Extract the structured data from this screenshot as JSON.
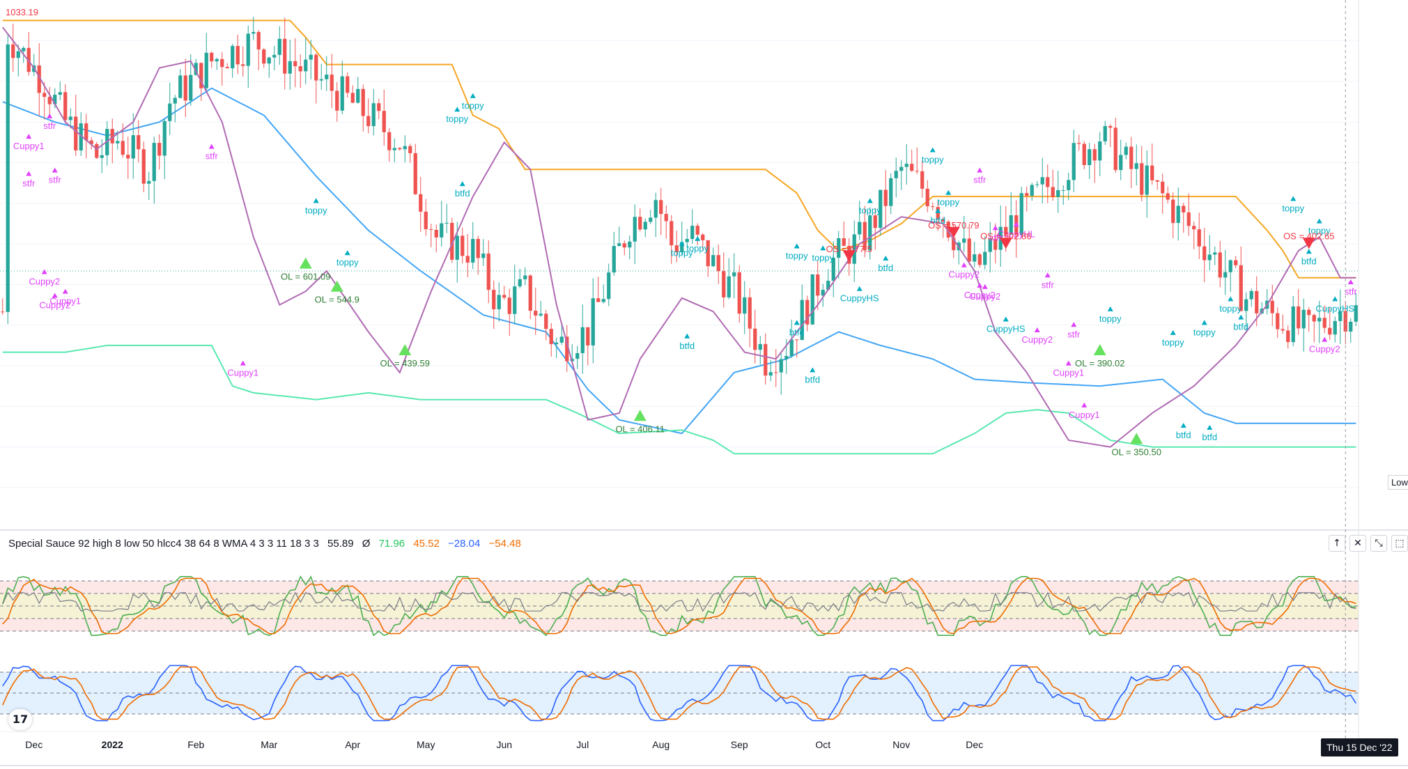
{
  "chart_data": [
    {
      "type": "candlestick",
      "ylim": [
        330,
        1040
      ],
      "x_ticks": [
        "Dec",
        "2022",
        "Feb",
        "Mar",
        "Apr",
        "May",
        "Jun",
        "Jul",
        "Aug",
        "Sep",
        "Oct",
        "Nov",
        "Dec"
      ],
      "n_bars": 260,
      "price_label": "1033.19",
      "low_label": "Low",
      "ohlc_seed": [
        [
          1,
          1000
        ],
        [
          8,
          930
        ],
        [
          12,
          870
        ],
        [
          18,
          820
        ],
        [
          22,
          845
        ],
        [
          28,
          800
        ],
        [
          32,
          900
        ],
        [
          40,
          960
        ],
        [
          48,
          990
        ],
        [
          55,
          960
        ],
        [
          62,
          925
        ],
        [
          70,
          880
        ],
        [
          76,
          840
        ],
        [
          83,
          700
        ],
        [
          90,
          680
        ],
        [
          95,
          600
        ],
        [
          100,
          620
        ],
        [
          106,
          540
        ],
        [
          112,
          560
        ],
        [
          120,
          720
        ],
        [
          125,
          760
        ],
        [
          128,
          690
        ],
        [
          132,
          700
        ],
        [
          140,
          620
        ],
        [
          146,
          520
        ],
        [
          150,
          540
        ],
        [
          158,
          660
        ],
        [
          165,
          700
        ],
        [
          172,
          800
        ],
        [
          178,
          760
        ],
        [
          186,
          650
        ],
        [
          193,
          720
        ],
        [
          198,
          760
        ],
        [
          205,
          815
        ],
        [
          210,
          850
        ],
        [
          216,
          800
        ],
        [
          222,
          760
        ],
        [
          230,
          690
        ],
        [
          238,
          610
        ],
        [
          244,
          580
        ],
        [
          250,
          560
        ],
        [
          256,
          590
        ]
      ],
      "upper_band_orange": [
        [
          0,
          1020
        ],
        [
          55,
          1020
        ],
        [
          58,
          995
        ],
        [
          62,
          955
        ],
        [
          86,
          955
        ],
        [
          90,
          880
        ],
        [
          95,
          860
        ],
        [
          100,
          800
        ],
        [
          146,
          800
        ],
        [
          152,
          765
        ],
        [
          156,
          710
        ],
        [
          160,
          680
        ],
        [
          166,
          695
        ],
        [
          172,
          720
        ],
        [
          178,
          760
        ],
        [
          236,
          760
        ],
        [
          242,
          710
        ],
        [
          245,
          680
        ],
        [
          248,
          640
        ],
        [
          260,
          640
        ]
      ],
      "middle_band_blue": [
        [
          0,
          900
        ],
        [
          10,
          870
        ],
        [
          20,
          850
        ],
        [
          30,
          870
        ],
        [
          40,
          920
        ],
        [
          50,
          880
        ],
        [
          60,
          790
        ],
        [
          70,
          710
        ],
        [
          80,
          650
        ],
        [
          92,
          585
        ],
        [
          104,
          560
        ],
        [
          112,
          475
        ],
        [
          118,
          430
        ],
        [
          130,
          410
        ],
        [
          140,
          500
        ],
        [
          150,
          520
        ],
        [
          160,
          560
        ],
        [
          168,
          540
        ],
        [
          178,
          520
        ],
        [
          186,
          490
        ],
        [
          196,
          485
        ],
        [
          210,
          480
        ],
        [
          222,
          490
        ],
        [
          230,
          440
        ],
        [
          236,
          425
        ],
        [
          260,
          425
        ]
      ],
      "lower_band_green": [
        [
          0,
          530
        ],
        [
          12,
          530
        ],
        [
          20,
          540
        ],
        [
          40,
          540
        ],
        [
          44,
          480
        ],
        [
          48,
          470
        ],
        [
          60,
          460
        ],
        [
          70,
          470
        ],
        [
          80,
          460
        ],
        [
          104,
          460
        ],
        [
          110,
          440
        ],
        [
          118,
          410
        ],
        [
          130,
          415
        ],
        [
          136,
          400
        ],
        [
          140,
          380
        ],
        [
          156,
          380
        ],
        [
          178,
          380
        ],
        [
          182,
          395
        ],
        [
          186,
          410
        ],
        [
          192,
          440
        ],
        [
          198,
          445
        ],
        [
          204,
          440
        ],
        [
          212,
          400
        ],
        [
          220,
          390
        ],
        [
          260,
          390
        ]
      ],
      "wma_purple": [
        [
          0,
          1010
        ],
        [
          6,
          950
        ],
        [
          12,
          870
        ],
        [
          18,
          830
        ],
        [
          25,
          870
        ],
        [
          30,
          950
        ],
        [
          36,
          960
        ],
        [
          42,
          870
        ],
        [
          48,
          700
        ],
        [
          53,
          600
        ],
        [
          58,
          620
        ],
        [
          62,
          650
        ],
        [
          70,
          560
        ],
        [
          76,
          500
        ],
        [
          82,
          620
        ],
        [
          90,
          760
        ],
        [
          96,
          840
        ],
        [
          101,
          800
        ],
        [
          106,
          600
        ],
        [
          112,
          430
        ],
        [
          118,
          440
        ],
        [
          122,
          520
        ],
        [
          130,
          610
        ],
        [
          136,
          590
        ],
        [
          142,
          530
        ],
        [
          148,
          520
        ],
        [
          156,
          600
        ],
        [
          164,
          690
        ],
        [
          172,
          730
        ],
        [
          180,
          720
        ],
        [
          186,
          650
        ],
        [
          190,
          560
        ],
        [
          196,
          500
        ],
        [
          204,
          400
        ],
        [
          212,
          390
        ],
        [
          220,
          440
        ],
        [
          228,
          480
        ],
        [
          236,
          540
        ],
        [
          242,
          600
        ],
        [
          248,
          680
        ],
        [
          252,
          700
        ],
        [
          256,
          640
        ]
      ],
      "annotations": [
        {
          "text": "toppy",
          "bar": 90,
          "price": 890,
          "color": "#00acc1"
        },
        {
          "text": "toppy",
          "bar": 87,
          "price": 870,
          "color": "#00acc1"
        },
        {
          "text": "btfd",
          "bar": 88,
          "price": 760,
          "color": "#00acc1"
        },
        {
          "text": "toppy",
          "bar": 60,
          "price": 735,
          "color": "#00acc1"
        },
        {
          "text": "toppy",
          "bar": 66,
          "price": 658,
          "color": "#00acc1"
        },
        {
          "text": "toppy",
          "bar": 130,
          "price": 672,
          "color": "#00acc1"
        },
        {
          "text": "toppy",
          "bar": 133,
          "price": 679,
          "color": "#00acc1"
        },
        {
          "text": "btfd",
          "bar": 131,
          "price": 535,
          "color": "#00acc1"
        },
        {
          "text": "toppy",
          "bar": 152,
          "price": 668,
          "color": "#00acc1"
        },
        {
          "text": "toppy",
          "bar": 157,
          "price": 665,
          "color": "#00acc1"
        },
        {
          "text": "btfd",
          "bar": 152,
          "price": 555,
          "color": "#00acc1"
        },
        {
          "text": "btfd",
          "bar": 155,
          "price": 485,
          "color": "#00acc1"
        },
        {
          "text": "toppy",
          "bar": 178,
          "price": 810,
          "color": "#00acc1"
        },
        {
          "text": "toppy",
          "bar": 166,
          "price": 735,
          "color": "#00acc1"
        },
        {
          "text": "toppy",
          "bar": 181,
          "price": 747,
          "color": "#00acc1"
        },
        {
          "text": "btfd",
          "bar": 169,
          "price": 650,
          "color": "#00acc1"
        },
        {
          "text": "btfd",
          "bar": 179,
          "price": 720,
          "color": "#00acc1"
        },
        {
          "text": "toppy",
          "bar": 212,
          "price": 575,
          "color": "#00acc1"
        },
        {
          "text": "toppy",
          "bar": 224,
          "price": 540,
          "color": "#00acc1"
        },
        {
          "text": "toppy",
          "bar": 230,
          "price": 555,
          "color": "#00acc1"
        },
        {
          "text": "toppy",
          "bar": 235,
          "price": 590,
          "color": "#00acc1"
        },
        {
          "text": "btfd",
          "bar": 226,
          "price": 403,
          "color": "#00acc1"
        },
        {
          "text": "btfd",
          "bar": 231,
          "price": 400,
          "color": "#00acc1"
        },
        {
          "text": "btfd",
          "bar": 237,
          "price": 563,
          "color": "#00acc1"
        },
        {
          "text": "toppy",
          "bar": 247,
          "price": 738,
          "color": "#00acc1"
        },
        {
          "text": "toppy",
          "bar": 252,
          "price": 705,
          "color": "#00acc1"
        },
        {
          "text": "btfd",
          "bar": 250,
          "price": 660,
          "color": "#00acc1"
        },
        {
          "text": "stfr",
          "bar": 9,
          "price": 860,
          "color": "#e040fb"
        },
        {
          "text": "stfr",
          "bar": 5,
          "price": 775,
          "color": "#e040fb"
        },
        {
          "text": "stfr",
          "bar": 10,
          "price": 780,
          "color": "#e040fb"
        },
        {
          "text": "stfr",
          "bar": 40,
          "price": 815,
          "color": "#e040fb"
        },
        {
          "text": "stfr",
          "bar": 187,
          "price": 780,
          "color": "#e040fb"
        },
        {
          "text": "stfr",
          "bar": 190,
          "price": 695,
          "color": "#e040fb"
        },
        {
          "text": "stfr",
          "bar": 200,
          "price": 625,
          "color": "#e040fb"
        },
        {
          "text": "stfr",
          "bar": 205,
          "price": 552,
          "color": "#e040fb"
        },
        {
          "text": "stfr",
          "bar": 258,
          "price": 615,
          "color": "#e040fb"
        },
        {
          "text": "Cuppy1",
          "bar": 5,
          "price": 830,
          "color": "#e040fb"
        },
        {
          "text": "Cuppy2",
          "bar": 8,
          "price": 630,
          "color": "#e040fb"
        },
        {
          "text": "Cuppy1",
          "bar": 12,
          "price": 601,
          "color": "#e040fb"
        },
        {
          "text": "Cuppy2",
          "bar": 10,
          "price": 595,
          "color": "#e040fb"
        },
        {
          "text": "Cuppy1",
          "bar": 46,
          "price": 495,
          "color": "#e040fb"
        },
        {
          "text": "Cuppy2",
          "bar": 184,
          "price": 640,
          "color": "#e040fb"
        },
        {
          "text": "Cuppy2",
          "bar": 187,
          "price": 610,
          "color": "#e040fb"
        },
        {
          "text": "Cuppy2",
          "bar": 188,
          "price": 608,
          "color": "#e040fb"
        },
        {
          "text": "Cuppy2",
          "bar": 198,
          "price": 544,
          "color": "#e040fb"
        },
        {
          "text": "Cuppy1",
          "bar": 204,
          "price": 495,
          "color": "#e040fb"
        },
        {
          "text": "Cuppy1",
          "bar": 207,
          "price": 433,
          "color": "#e040fb"
        },
        {
          "text": "Cuppy2",
          "bar": 253,
          "price": 530,
          "color": "#e040fb"
        },
        {
          "text": "CuppyHS",
          "bar": 164,
          "price": 605,
          "color": "#00acc1"
        },
        {
          "text": "CuppyHS",
          "bar": 192,
          "price": 560,
          "color": "#00acc1"
        },
        {
          "text": "CuppyHL",
          "bar": 194,
          "price": 700,
          "color": "#e040fb"
        },
        {
          "text": "CuppyHS",
          "bar": 255,
          "price": 590,
          "color": "#00acc1"
        },
        {
          "text": "OL = 601.09",
          "bar": 58,
          "price": 637,
          "color": "#2e7d32"
        },
        {
          "text": "OL = 544.9",
          "bar": 64,
          "price": 603,
          "color": "#2e7d32"
        },
        {
          "text": "OL = 439.59",
          "bar": 77,
          "price": 509,
          "color": "#2e7d32"
        },
        {
          "text": "OL = 406.11",
          "bar": 122,
          "price": 412,
          "color": "#2e7d32"
        },
        {
          "text": "OL = 390.02",
          "bar": 210,
          "price": 509,
          "color": "#2e7d32"
        },
        {
          "text": "OL = 350.50",
          "bar": 217,
          "price": 378,
          "color": "#2e7d32"
        },
        {
          "text": "OS = 477.5",
          "bar": 162,
          "price": 678,
          "color": "#f23645"
        },
        {
          "text": "OS = 570.79",
          "bar": 182,
          "price": 713,
          "color": "#f23645"
        },
        {
          "text": "OS = 502.86",
          "bar": 192,
          "price": 697,
          "color": "#f23645"
        },
        {
          "text": "OS = 402.65",
          "bar": 250,
          "price": 697,
          "color": "#f23645"
        }
      ]
    },
    {
      "type": "line",
      "title": "Special Sauce 92 high 8 low 50 hlcc4 38 64 8 WMA 4 3 3 11 18 3 3",
      "legend_values": [
        "55.89",
        "Ø",
        "71.96",
        "45.52",
        "−28.04",
        "−54.48"
      ],
      "legend_colors": [
        "#131722",
        "#131722",
        "#22c55e",
        "#ef6c00",
        "#2962ff",
        "#ef6c00"
      ],
      "upper_panel": {
        "ylim": [
          0,
          100
        ],
        "levels": [
          20,
          35,
          50,
          65,
          80
        ],
        "series": [
          {
            "color": "#4caf50"
          },
          {
            "color": "#ef6c00"
          },
          {
            "color": "#787b86"
          }
        ]
      },
      "lower_panel": {
        "ylim": [
          -100,
          0
        ],
        "levels": [
          -80,
          -50,
          -20
        ],
        "series": [
          {
            "color": "#2962ff"
          },
          {
            "color": "#ef6c00"
          }
        ]
      }
    }
  ],
  "crosshair_date": "Thu 15 Dec '22",
  "colors": {
    "up": "#26a69a",
    "down": "#ef5350",
    "orange": "#f5a623",
    "blue": "#42a5f5",
    "green": "#58e8b0",
    "purple": "#b06ab3"
  },
  "pane_buttons": [
    "↑",
    "✕",
    "⤡",
    "⬚"
  ],
  "logo_text": "17"
}
